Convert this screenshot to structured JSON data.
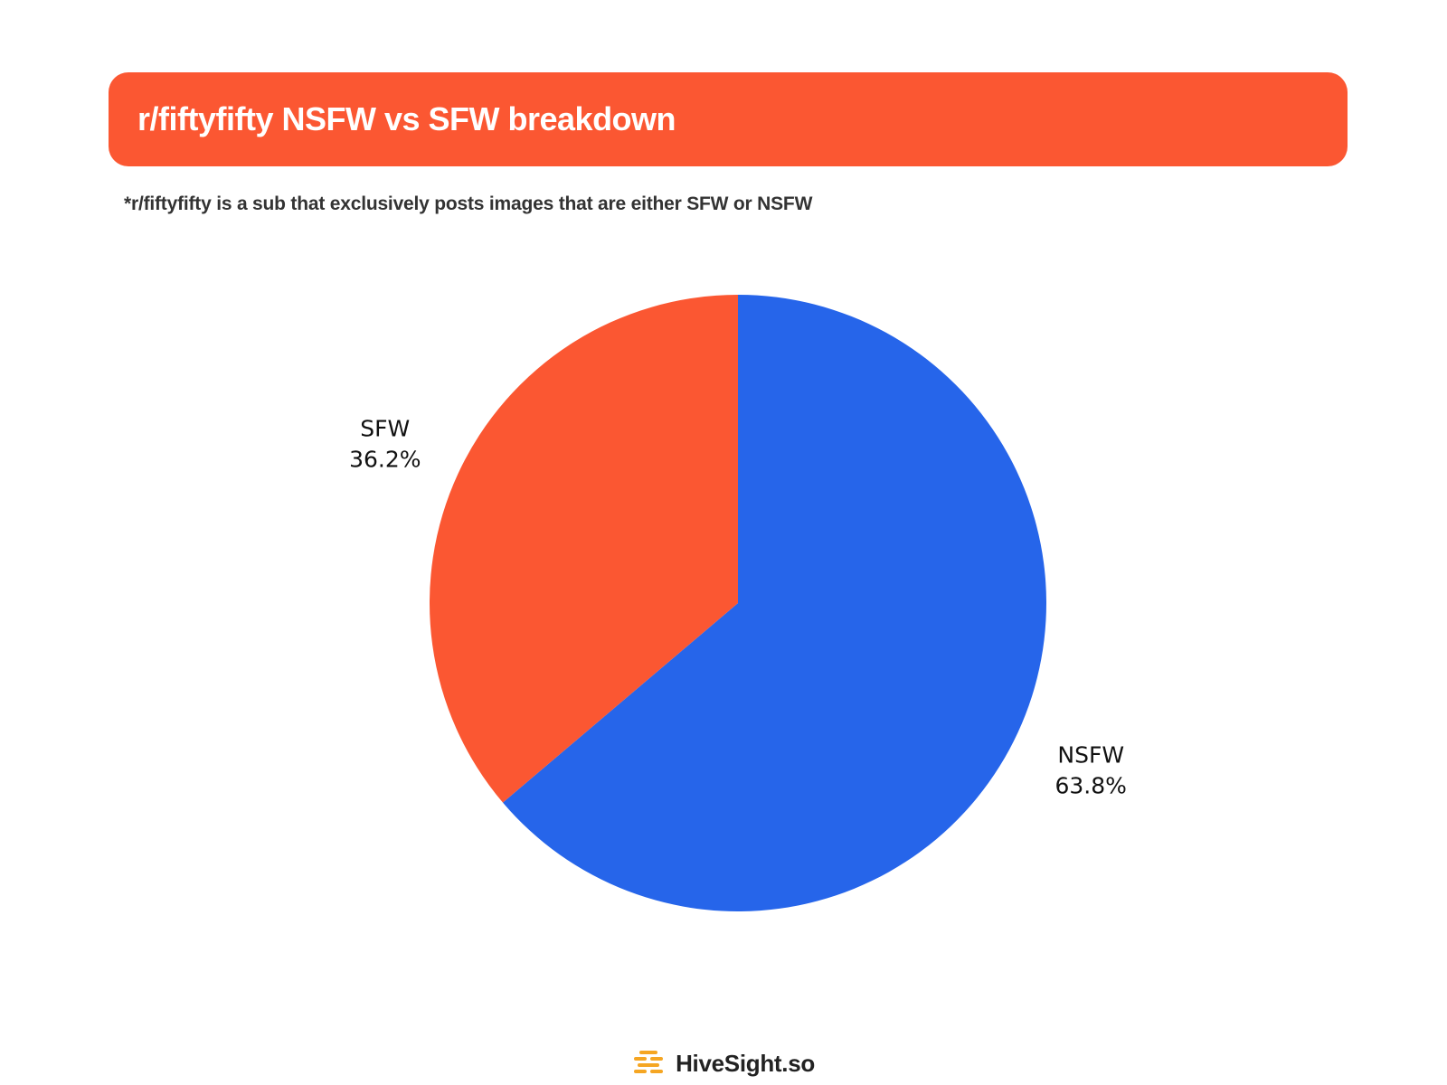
{
  "header": {
    "title": "r/fiftyfifty NSFW vs SFW breakdown",
    "subtitle": "*r/fiftyfifty is a sub that exclusively posts images that are either SFW or NSFW"
  },
  "chart_data": {
    "type": "pie",
    "title": "r/fiftyfifty NSFW vs SFW breakdown",
    "slices": [
      {
        "label": "NSFW",
        "value": 63.8,
        "value_label": "63.8%",
        "color": "#2665ea"
      },
      {
        "label": "SFW",
        "value": 36.2,
        "value_label": "36.2%",
        "color": "#fb5732"
      }
    ],
    "start": "top",
    "direction": "clockwise",
    "labels_outside": true
  },
  "footer": {
    "brand": "HiveSight.so",
    "logo_icon": "honeycomb-logo-icon",
    "logo_color": "#f5a623"
  },
  "colors": {
    "banner": "#fb5732",
    "banner_text": "#ffffff"
  }
}
